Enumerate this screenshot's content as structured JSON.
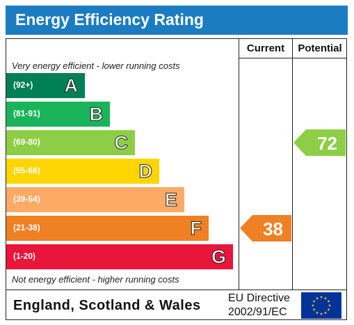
{
  "title": "Energy Efficiency Rating",
  "columns": {
    "current": "Current",
    "potential": "Potential"
  },
  "notes": {
    "top": "Very energy efficient - lower running costs",
    "bottom": "Not energy efficient - higher running costs"
  },
  "bands": [
    {
      "range": "(92+)",
      "letter": "A",
      "color": "#008054"
    },
    {
      "range": "(81-91)",
      "letter": "B",
      "color": "#19b459"
    },
    {
      "range": "(69-80)",
      "letter": "C",
      "color": "#8dce46"
    },
    {
      "range": "(55-68)",
      "letter": "D",
      "color": "#ffd500"
    },
    {
      "range": "(39-54)",
      "letter": "E",
      "color": "#fcaa65"
    },
    {
      "range": "(21-38)",
      "letter": "F",
      "color": "#ef8023"
    },
    {
      "range": "(1-20)",
      "letter": "G",
      "color": "#e9153b"
    }
  ],
  "current": {
    "value": "38",
    "band": "F",
    "color": "#ef8023"
  },
  "potential": {
    "value": "72",
    "band": "C",
    "color": "#8dce46"
  },
  "footer": {
    "region": "England, Scotland & Wales",
    "directive_line1": "EU Directive",
    "directive_line2": "2002/91/EC"
  },
  "icons": {
    "flag": "eu-flag-icon"
  }
}
